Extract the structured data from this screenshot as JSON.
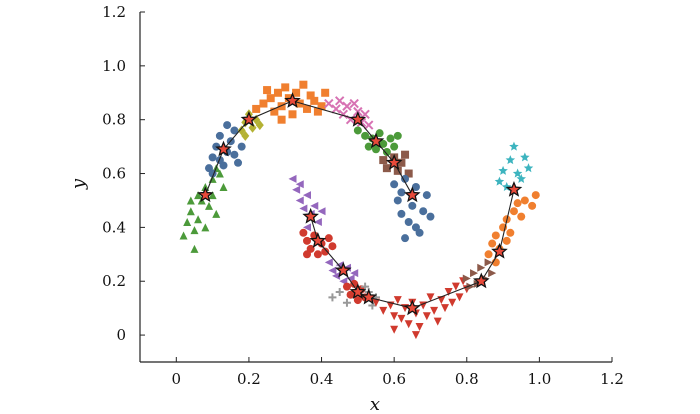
{
  "chart_data": {
    "type": "scatter",
    "title": "",
    "xlabel": "x",
    "ylabel": "y",
    "xlim": [
      -0.1,
      1.2
    ],
    "ylim": [
      -0.1,
      1.2
    ],
    "x_ticks": [
      0,
      0.2,
      0.4,
      0.6,
      0.8,
      1.0,
      1.2
    ],
    "x_tick_labels": [
      "0",
      "0.2",
      "0.4",
      "0.6",
      "0.8",
      "1.0",
      "1.2"
    ],
    "y_ticks": [
      0,
      0.2,
      0.4,
      0.6,
      0.8,
      1.0,
      1.2
    ],
    "y_tick_labels": [
      "0",
      "0.2",
      "0.4",
      "0.6",
      "0.8",
      "1.0",
      "1.2"
    ],
    "grid": false,
    "legend": "none",
    "series": [
      {
        "color": "#4c9a3a",
        "marker": "triangle-up",
        "center": [
          0.08,
          0.52
        ],
        "points": [
          [
            0.02,
            0.37
          ],
          [
            0.03,
            0.42
          ],
          [
            0.04,
            0.46
          ],
          [
            0.05,
            0.39
          ],
          [
            0.06,
            0.43
          ],
          [
            0.07,
            0.5
          ],
          [
            0.08,
            0.55
          ],
          [
            0.09,
            0.48
          ],
          [
            0.1,
            0.58
          ],
          [
            0.11,
            0.45
          ],
          [
            0.12,
            0.6
          ],
          [
            0.06,
            0.52
          ],
          [
            0.04,
            0.5
          ],
          [
            0.1,
            0.52
          ],
          [
            0.13,
            0.55
          ],
          [
            0.05,
            0.32
          ],
          [
            0.08,
            0.4
          ],
          [
            0.11,
            0.62
          ]
        ]
      },
      {
        "color": "#4a6f9c",
        "marker": "circle",
        "center": [
          0.13,
          0.69
        ],
        "points": [
          [
            0.09,
            0.62
          ],
          [
            0.1,
            0.66
          ],
          [
            0.11,
            0.7
          ],
          [
            0.12,
            0.74
          ],
          [
            0.13,
            0.63
          ],
          [
            0.14,
            0.68
          ],
          [
            0.15,
            0.72
          ],
          [
            0.16,
            0.76
          ],
          [
            0.17,
            0.64
          ],
          [
            0.18,
            0.7
          ],
          [
            0.1,
            0.6
          ],
          [
            0.14,
            0.78
          ],
          [
            0.16,
            0.67
          ],
          [
            0.12,
            0.65
          ]
        ]
      },
      {
        "color": "#b4b233",
        "marker": "diamond",
        "center": [
          0.2,
          0.8
        ],
        "points": [
          [
            0.18,
            0.76
          ],
          [
            0.19,
            0.79
          ],
          [
            0.2,
            0.82
          ],
          [
            0.21,
            0.77
          ],
          [
            0.22,
            0.8
          ],
          [
            0.19,
            0.74
          ],
          [
            0.23,
            0.78
          ]
        ]
      },
      {
        "color": "#f07f2f",
        "marker": "square",
        "center": [
          0.32,
          0.87
        ],
        "points": [
          [
            0.22,
            0.84
          ],
          [
            0.24,
            0.86
          ],
          [
            0.26,
            0.88
          ],
          [
            0.27,
            0.83
          ],
          [
            0.28,
            0.9
          ],
          [
            0.29,
            0.85
          ],
          [
            0.3,
            0.92
          ],
          [
            0.31,
            0.88
          ],
          [
            0.32,
            0.82
          ],
          [
            0.33,
            0.9
          ],
          [
            0.34,
            0.86
          ],
          [
            0.35,
            0.93
          ],
          [
            0.36,
            0.84
          ],
          [
            0.37,
            0.89
          ],
          [
            0.38,
            0.87
          ],
          [
            0.4,
            0.85
          ],
          [
            0.41,
            0.9
          ],
          [
            0.39,
            0.83
          ],
          [
            0.29,
            0.8
          ],
          [
            0.25,
            0.91
          ]
        ]
      },
      {
        "color": "#d772b3",
        "marker": "x",
        "center": [
          0.5,
          0.8
        ],
        "points": [
          [
            0.42,
            0.86
          ],
          [
            0.44,
            0.84
          ],
          [
            0.45,
            0.87
          ],
          [
            0.46,
            0.82
          ],
          [
            0.47,
            0.85
          ],
          [
            0.48,
            0.8
          ],
          [
            0.5,
            0.83
          ],
          [
            0.51,
            0.79
          ],
          [
            0.52,
            0.82
          ],
          [
            0.53,
            0.78
          ],
          [
            0.49,
            0.86
          ]
        ]
      },
      {
        "color": "#4c9a3a",
        "marker": "circle",
        "center": [
          0.55,
          0.72
        ],
        "points": [
          [
            0.5,
            0.76
          ],
          [
            0.52,
            0.74
          ],
          [
            0.53,
            0.7
          ],
          [
            0.54,
            0.73
          ],
          [
            0.55,
            0.69
          ],
          [
            0.56,
            0.75
          ],
          [
            0.57,
            0.71
          ],
          [
            0.58,
            0.68
          ],
          [
            0.59,
            0.73
          ],
          [
            0.6,
            0.7
          ],
          [
            0.61,
            0.74
          ]
        ]
      },
      {
        "color": "#8c5a4a",
        "marker": "square",
        "center": [
          0.6,
          0.64
        ],
        "points": [
          [
            0.57,
            0.65
          ],
          [
            0.58,
            0.62
          ],
          [
            0.6,
            0.66
          ],
          [
            0.61,
            0.61
          ],
          [
            0.62,
            0.64
          ],
          [
            0.63,
            0.67
          ],
          [
            0.64,
            0.6
          ]
        ]
      },
      {
        "color": "#4a6f9c",
        "marker": "circle",
        "center": [
          0.65,
          0.52
        ],
        "points": [
          [
            0.6,
            0.56
          ],
          [
            0.61,
            0.5
          ],
          [
            0.62,
            0.45
          ],
          [
            0.63,
            0.58
          ],
          [
            0.64,
            0.42
          ],
          [
            0.65,
            0.48
          ],
          [
            0.66,
            0.55
          ],
          [
            0.67,
            0.38
          ],
          [
            0.68,
            0.46
          ],
          [
            0.69,
            0.52
          ],
          [
            0.63,
            0.36
          ],
          [
            0.66,
            0.4
          ],
          [
            0.7,
            0.44
          ],
          [
            0.62,
            0.53
          ]
        ]
      },
      {
        "color": "#9467bd",
        "marker": "triangle-left",
        "center": [
          0.37,
          0.44
        ],
        "points": [
          [
            0.32,
            0.58
          ],
          [
            0.33,
            0.54
          ],
          [
            0.34,
            0.5
          ],
          [
            0.35,
            0.47
          ],
          [
            0.36,
            0.52
          ],
          [
            0.37,
            0.45
          ],
          [
            0.38,
            0.48
          ],
          [
            0.39,
            0.42
          ],
          [
            0.34,
            0.56
          ],
          [
            0.36,
            0.4
          ],
          [
            0.4,
            0.46
          ]
        ]
      },
      {
        "color": "#d03a2e",
        "marker": "circle",
        "center": [
          0.39,
          0.35
        ],
        "points": [
          [
            0.35,
            0.38
          ],
          [
            0.36,
            0.35
          ],
          [
            0.37,
            0.32
          ],
          [
            0.38,
            0.37
          ],
          [
            0.39,
            0.3
          ],
          [
            0.4,
            0.34
          ],
          [
            0.41,
            0.31
          ],
          [
            0.42,
            0.36
          ],
          [
            0.36,
            0.3
          ],
          [
            0.43,
            0.33
          ]
        ]
      },
      {
        "color": "#9467bd",
        "marker": "triangle-left",
        "center": [
          0.46,
          0.24
        ],
        "points": [
          [
            0.42,
            0.27
          ],
          [
            0.43,
            0.24
          ],
          [
            0.44,
            0.22
          ],
          [
            0.45,
            0.26
          ],
          [
            0.46,
            0.2
          ],
          [
            0.47,
            0.25
          ],
          [
            0.48,
            0.21
          ],
          [
            0.49,
            0.23
          ]
        ]
      },
      {
        "color": "#d03a2e",
        "marker": "circle",
        "center": [
          0.5,
          0.16
        ],
        "points": [
          [
            0.47,
            0.18
          ],
          [
            0.48,
            0.15
          ],
          [
            0.49,
            0.19
          ],
          [
            0.5,
            0.13
          ],
          [
            0.51,
            0.17
          ],
          [
            0.52,
            0.14
          ]
        ]
      },
      {
        "color": "#999999",
        "marker": "plus",
        "center": [
          0.53,
          0.14
        ],
        "points": [
          [
            0.43,
            0.14
          ],
          [
            0.45,
            0.16
          ],
          [
            0.47,
            0.12
          ],
          [
            0.53,
            0.16
          ],
          [
            0.55,
            0.14
          ],
          [
            0.54,
            0.11
          ],
          [
            0.52,
            0.18
          ]
        ]
      },
      {
        "color": "#d03a2e",
        "marker": "triangle-down",
        "center": [
          0.65,
          0.1
        ],
        "points": [
          [
            0.55,
            0.12
          ],
          [
            0.57,
            0.09
          ],
          [
            0.59,
            0.11
          ],
          [
            0.6,
            0.07
          ],
          [
            0.61,
            0.13
          ],
          [
            0.62,
            0.06
          ],
          [
            0.63,
            0.1
          ],
          [
            0.64,
            0.04
          ],
          [
            0.65,
            0.12
          ],
          [
            0.66,
            0.08
          ],
          [
            0.67,
            0.03
          ],
          [
            0.68,
            0.11
          ],
          [
            0.69,
            0.07
          ],
          [
            0.7,
            0.14
          ],
          [
            0.71,
            0.09
          ],
          [
            0.72,
            0.05
          ],
          [
            0.73,
            0.13
          ],
          [
            0.74,
            0.1
          ],
          [
            0.75,
            0.16
          ],
          [
            0.76,
            0.12
          ],
          [
            0.77,
            0.18
          ],
          [
            0.78,
            0.14
          ],
          [
            0.79,
            0.2
          ],
          [
            0.8,
            0.17
          ],
          [
            0.6,
            0.02
          ],
          [
            0.66,
            0.0
          ]
        ]
      },
      {
        "color": "#8c5a4a",
        "marker": "triangle-right",
        "center": [
          0.84,
          0.2
        ],
        "points": [
          [
            0.8,
            0.21
          ],
          [
            0.81,
            0.18
          ],
          [
            0.82,
            0.23
          ],
          [
            0.83,
            0.19
          ],
          [
            0.84,
            0.25
          ],
          [
            0.85,
            0.21
          ],
          [
            0.86,
            0.27
          ],
          [
            0.87,
            0.23
          ]
        ]
      },
      {
        "color": "#f07f2f",
        "marker": "circle",
        "center": [
          0.89,
          0.31
        ],
        "points": [
          [
            0.86,
            0.3
          ],
          [
            0.87,
            0.34
          ],
          [
            0.88,
            0.37
          ],
          [
            0.89,
            0.32
          ],
          [
            0.9,
            0.4
          ],
          [
            0.91,
            0.43
          ],
          [
            0.92,
            0.38
          ],
          [
            0.93,
            0.46
          ],
          [
            0.94,
            0.49
          ],
          [
            0.95,
            0.44
          ],
          [
            0.96,
            0.5
          ],
          [
            0.98,
            0.48
          ],
          [
            0.99,
            0.52
          ],
          [
            0.88,
            0.27
          ],
          [
            0.91,
            0.35
          ]
        ]
      },
      {
        "color": "#3db4bf",
        "marker": "star",
        "center": [
          0.93,
          0.54
        ],
        "points": [
          [
            0.89,
            0.57
          ],
          [
            0.9,
            0.61
          ],
          [
            0.91,
            0.55
          ],
          [
            0.92,
            0.65
          ],
          [
            0.93,
            0.7
          ],
          [
            0.94,
            0.6
          ],
          [
            0.95,
            0.58
          ],
          [
            0.96,
            0.66
          ],
          [
            0.97,
            0.62
          ]
        ]
      }
    ]
  }
}
